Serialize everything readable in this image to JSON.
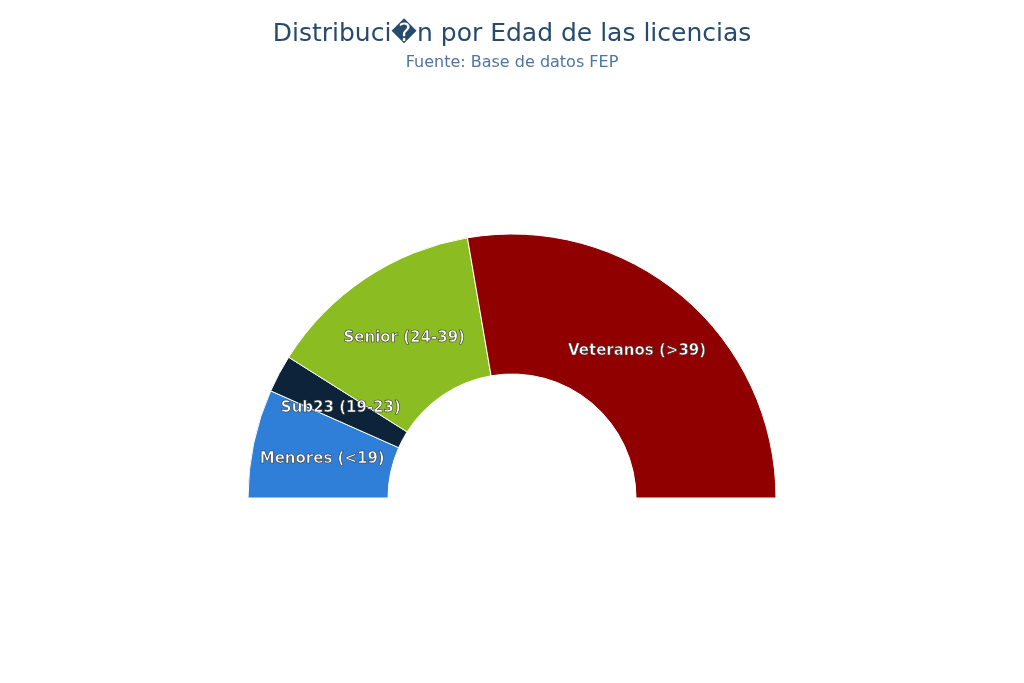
{
  "chart_data": {
    "type": "donut",
    "title": "Distribuci�n por Edad de las licencias",
    "subtitle": "Fuente: Base de datos FEP",
    "categories": [
      "Menores (<19)",
      "Sub23 (19-23)",
      "Senior (24-39)",
      "Veteranos (>39)"
    ],
    "values": [
      13.3,
      4.6,
      26.7,
      55.4
    ],
    "colors": [
      "#2f7ed8",
      "#0d233a",
      "#8bbc21",
      "#910000"
    ]
  }
}
